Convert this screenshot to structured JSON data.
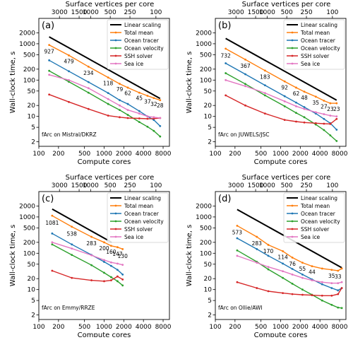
{
  "figure": {
    "legend_entries": [
      "Linear scaling",
      "Total mean",
      "Ocean tracer",
      "Ocean velocity",
      "SSH solver",
      "Sea ice"
    ]
  },
  "chart_data": [
    {
      "type": "line",
      "panel_label": "(a)",
      "note": "fArc on Mistral/DKRZ",
      "xlabel": "Compute cores",
      "ylabel": "Wall-clock time, s",
      "top_xlabel": "Surface vertices per core",
      "x_scale": "log",
      "y_scale": "log",
      "xlim": [
        100,
        10000
      ],
      "ylim": [
        1.5,
        5000
      ],
      "x_ticks": [
        100,
        200,
        500,
        1000,
        2000,
        4000,
        8000
      ],
      "x_tick_labels": [
        "100",
        "200",
        "500",
        "1000",
        "2000",
        "4000",
        "8000"
      ],
      "y_ticks": [
        2,
        5,
        10,
        20,
        50,
        100,
        200,
        500,
        1000,
        2000
      ],
      "y_tick_labels": [
        "2",
        "5",
        "10",
        "20",
        "50",
        "100",
        "200",
        "500",
        "1000",
        "2000"
      ],
      "top_ticks": [
        207,
        414,
        621,
        1241,
        2483,
        6207
      ],
      "top_tick_labels": [
        "3000",
        "1500",
        "1000",
        "500",
        "250",
        "100"
      ],
      "legend_position": "top-right",
      "series": [
        {
          "name": "Linear scaling",
          "color": "#000000",
          "marker": false,
          "x": [
            144,
            7200
          ],
          "y": [
            1550,
            31
          ]
        },
        {
          "name": "Total mean",
          "color": "#ff7f0e",
          "marker": true,
          "x": [
            144,
            288,
            576,
            1152,
            1728,
            2304,
            3456,
            4608,
            5760,
            7200
          ],
          "y": [
            927,
            479,
            234,
            118,
            79,
            62,
            45,
            37,
            32,
            28
          ]
        },
        {
          "name": "Ocean tracer",
          "color": "#1f77b4",
          "marker": true,
          "x": [
            144,
            288,
            576,
            1152,
            1728,
            2304,
            3456,
            4608,
            5760,
            7200
          ],
          "y": [
            350,
            175,
            88,
            44,
            28,
            22,
            14,
            10,
            8,
            5.4
          ]
        },
        {
          "name": "Ocean velocity",
          "color": "#2ca02c",
          "marker": true,
          "x": [
            144,
            288,
            576,
            1152,
            1728,
            2304,
            3456,
            4608,
            5760,
            7200
          ],
          "y": [
            180,
            90,
            45,
            22,
            15,
            11,
            7,
            5.2,
            4,
            2.8
          ]
        },
        {
          "name": "SSH solver",
          "color": "#d62728",
          "marker": true,
          "x": [
            144,
            288,
            576,
            1152,
            1728,
            2304,
            3456,
            4608,
            5760,
            7200
          ],
          "y": [
            40,
            25,
            16,
            10.5,
            9.5,
            9.0,
            8.8,
            8.6,
            8.7,
            9.0
          ]
        },
        {
          "name": "Sea ice",
          "color": "#e377c2",
          "marker": true,
          "x": [
            144,
            288,
            576,
            1152,
            1728,
            2304,
            3456,
            4608,
            5760,
            7200
          ],
          "y": [
            140,
            100,
            60,
            30,
            20,
            15,
            12,
            10,
            9.5,
            9.0
          ]
        }
      ],
      "data_labels": [
        927,
        479,
        234,
        118,
        79,
        62,
        45,
        37,
        32,
        28
      ],
      "data_label_x": [
        144,
        288,
        576,
        1152,
        1728,
        2304,
        3456,
        4608,
        5760,
        7200
      ],
      "data_label_y": [
        620,
        330,
        160,
        82,
        56,
        44,
        32,
        26,
        22,
        20
      ]
    },
    {
      "type": "line",
      "panel_label": "(b)",
      "note": "fArc on JUWELS/JSC",
      "xlabel": "Compute cores",
      "ylabel": "Wall-clock time, s",
      "top_xlabel": "Surface vertices per core",
      "x_scale": "log",
      "y_scale": "log",
      "xlim": [
        100,
        10000
      ],
      "ylim": [
        1.5,
        5000
      ],
      "x_ticks": [
        100,
        200,
        500,
        1000,
        2000,
        4000,
        8000
      ],
      "x_tick_labels": [
        "100",
        "200",
        "500",
        "1000",
        "2000",
        "4000",
        "8000"
      ],
      "y_ticks": [
        2,
        5,
        10,
        20,
        50,
        100,
        200,
        500,
        1000,
        2000
      ],
      "y_tick_labels": [
        "2",
        "5",
        "10",
        "20",
        "50",
        "100",
        "200",
        "500",
        "1000",
        "2000"
      ],
      "top_ticks": [
        207,
        414,
        621,
        1241,
        2483,
        6207
      ],
      "top_tick_labels": [
        "3000",
        "1500",
        "1000",
        "500",
        "250",
        "100"
      ],
      "legend_position": "top-right",
      "series": [
        {
          "name": "Linear scaling",
          "color": "#000000",
          "marker": false,
          "x": [
            144,
            7200
          ],
          "y": [
            1400,
            28
          ]
        },
        {
          "name": "Total mean",
          "color": "#ff7f0e",
          "marker": true,
          "x": [
            144,
            288,
            576,
            1152,
            1728,
            2304,
            3456,
            4608,
            5760,
            7200
          ],
          "y": [
            732,
            367,
            183,
            92,
            62,
            48,
            35,
            27,
            23,
            23
          ]
        },
        {
          "name": "Ocean tracer",
          "color": "#1f77b4",
          "marker": true,
          "x": [
            144,
            288,
            576,
            1152,
            1728,
            2304,
            3456,
            4608,
            5760,
            7200
          ],
          "y": [
            290,
            145,
            72,
            36,
            24,
            18,
            12,
            8.5,
            6.5,
            4.3
          ]
        },
        {
          "name": "Ocean velocity",
          "color": "#2ca02c",
          "marker": true,
          "x": [
            144,
            288,
            576,
            1152,
            1728,
            2304,
            3456,
            4608,
            5760,
            7200
          ],
          "y": [
            155,
            78,
            38,
            19,
            12.5,
            9.5,
            6,
            4.2,
            3,
            2.1
          ]
        },
        {
          "name": "SSH solver",
          "color": "#d62728",
          "marker": true,
          "x": [
            144,
            288,
            576,
            1152,
            1728,
            2304,
            3456,
            4608,
            5760,
            7200
          ],
          "y": [
            38,
            20,
            12,
            8,
            7.2,
            6.8,
            6.5,
            6.3,
            6.2,
            8.5
          ]
        },
        {
          "name": "Sea ice",
          "color": "#e377c2",
          "marker": true,
          "x": [
            144,
            288,
            576,
            1152,
            1728,
            2304,
            3456,
            4608,
            5760,
            7200
          ],
          "y": [
            100,
            68,
            44,
            26,
            19,
            16,
            13,
            11.5,
            10.5,
            10
          ]
        }
      ],
      "data_labels": [
        732,
        367,
        183,
        92,
        62,
        48,
        35,
        27,
        23,
        23
      ],
      "data_label_x": [
        144,
        288,
        576,
        1152,
        1728,
        2304,
        3456,
        4608,
        5760,
        7200
      ],
      "data_label_y": [
        480,
        250,
        125,
        63,
        43,
        33,
        24,
        19,
        16,
        16
      ]
    },
    {
      "type": "line",
      "panel_label": "(c)",
      "note": "fArc on Emmy/RRZE",
      "xlabel": "Compute cores",
      "ylabel": "Wall-clock time, s",
      "top_xlabel": "Surface vertices per core",
      "x_scale": "log",
      "y_scale": "log",
      "xlim": [
        100,
        10000
      ],
      "ylim": [
        1.5,
        5000
      ],
      "x_ticks": [
        100,
        200,
        500,
        1000,
        2000,
        4000,
        8000
      ],
      "x_tick_labels": [
        "100",
        "200",
        "500",
        "1000",
        "2000",
        "4000",
        "8000"
      ],
      "y_ticks": [
        2,
        5,
        10,
        20,
        50,
        100,
        200,
        500,
        1000,
        2000
      ],
      "y_tick_labels": [
        "2",
        "5",
        "10",
        "20",
        "50",
        "100",
        "200",
        "500",
        "1000",
        "2000"
      ],
      "top_ticks": [
        207,
        414,
        621,
        1241,
        2483,
        6207
      ],
      "top_tick_labels": [
        "3000",
        "1500",
        "1000",
        "500",
        "250",
        "100"
      ],
      "legend_position": "top-right",
      "series": [
        {
          "name": "Linear scaling",
          "color": "#000000",
          "marker": false,
          "x": [
            160,
            1300
          ],
          "y": [
            1650,
            200
          ]
        },
        {
          "name": "Total mean",
          "color": "#ff7f0e",
          "marker": true,
          "x": [
            160,
            320,
            640,
            1000,
            1280,
            1600,
            1920
          ],
          "y": [
            1081,
            538,
            283,
            200,
            160,
            147,
            130
          ]
        },
        {
          "name": "Ocean tracer",
          "color": "#1f77b4",
          "marker": true,
          "x": [
            160,
            320,
            640,
            1000,
            1280,
            1600,
            1920
          ],
          "y": [
            350,
            175,
            90,
            58,
            45,
            35,
            26
          ]
        },
        {
          "name": "Ocean velocity",
          "color": "#2ca02c",
          "marker": true,
          "x": [
            160,
            320,
            640,
            1000,
            1280,
            1600,
            1920
          ],
          "y": [
            175,
            90,
            47,
            29,
            22,
            17,
            13
          ]
        },
        {
          "name": "SSH solver",
          "color": "#d62728",
          "marker": true,
          "x": [
            160,
            320,
            640,
            1000,
            1280,
            1600,
            1920
          ],
          "y": [
            33,
            21,
            18,
            17,
            18,
            23,
            19
          ]
        },
        {
          "name": "Sea ice",
          "color": "#e377c2",
          "marker": true,
          "x": [
            160,
            320,
            640,
            1000,
            1280,
            1600,
            1920
          ],
          "y": [
            200,
            135,
            88,
            65,
            56,
            52,
            48
          ]
        }
      ],
      "data_labels": [
        1081,
        538,
        283,
        200,
        160,
        147,
        130
      ],
      "data_label_x": [
        160,
        320,
        640,
        1000,
        1280,
        1600,
        1920
      ],
      "data_label_y": [
        700,
        350,
        190,
        138,
        112,
        97,
        85
      ]
    },
    {
      "type": "line",
      "panel_label": "(d)",
      "note": "fArc on Ollie/AWI",
      "xlabel": "Compute cores",
      "ylabel": "Wall-clock time, s",
      "top_xlabel": "Surface vertices per core",
      "x_scale": "log",
      "y_scale": "log",
      "xlim": [
        100,
        10000
      ],
      "ylim": [
        1.5,
        5000
      ],
      "x_ticks": [
        100,
        200,
        500,
        1000,
        2000,
        4000,
        8000
      ],
      "x_tick_labels": [
        "100",
        "200",
        "500",
        "1000",
        "2000",
        "4000",
        "8000"
      ],
      "y_ticks": [
        2,
        5,
        10,
        20,
        50,
        100,
        200,
        500,
        1000,
        2000
      ],
      "y_tick_labels": [
        "2",
        "5",
        "10",
        "20",
        "50",
        "100",
        "200",
        "500",
        "1000",
        "2000"
      ],
      "top_ticks": [
        207,
        414,
        621,
        1241,
        2483,
        6207
      ],
      "top_tick_labels": [
        "3000",
        "1500",
        "1000",
        "500",
        "250",
        "100"
      ],
      "legend_position": "top-right",
      "series": [
        {
          "name": "Linear scaling",
          "color": "#000000",
          "marker": false,
          "x": [
            216,
            8640
          ],
          "y": [
            1600,
            40
          ]
        },
        {
          "name": "Total mean",
          "color": "#ff7f0e",
          "marker": true,
          "x": [
            216,
            432,
            648,
            1080,
            1512,
            2160,
            3024,
            4320,
            6048,
            7560,
            8640
          ],
          "y": [
            573,
            283,
            170,
            114,
            76,
            55,
            44,
            38,
            35,
            33,
            38
          ]
        },
        {
          "name": "Ocean tracer",
          "color": "#1f77b4",
          "marker": true,
          "x": [
            216,
            432,
            648,
            1080,
            1512,
            2160,
            3024,
            4320,
            6048,
            7560,
            8640
          ],
          "y": [
            260,
            130,
            85,
            52,
            37,
            26,
            19,
            14,
            11,
            9.5,
            11
          ]
        },
        {
          "name": "Ocean velocity",
          "color": "#2ca02c",
          "marker": true,
          "x": [
            216,
            432,
            648,
            1080,
            1512,
            2160,
            3024,
            4320,
            6048,
            7560,
            8640
          ],
          "y": [
            120,
            58,
            36,
            21,
            14.5,
            10,
            7.2,
            5,
            3.8,
            3.2,
            3.1
          ]
        },
        {
          "name": "SSH solver",
          "color": "#d62728",
          "marker": true,
          "x": [
            216,
            432,
            648,
            1080,
            1512,
            2160,
            3024,
            4320,
            6048,
            7560,
            8640
          ],
          "y": [
            16,
            11,
            9,
            8,
            7.5,
            7.2,
            7,
            6.8,
            6.8,
            7.5,
            11
          ]
        },
        {
          "name": "Sea ice",
          "color": "#e377c2",
          "marker": true,
          "x": [
            216,
            432,
            648,
            1080,
            1512,
            2160,
            3024,
            4320,
            6048,
            7560,
            8640
          ],
          "y": [
            85,
            55,
            42,
            32,
            26,
            21,
            18,
            16,
            15,
            15,
            16
          ]
        }
      ],
      "data_labels": [
        573,
        283,
        170,
        114,
        76,
        55,
        44,
        35,
        33
      ],
      "data_label_x": [
        216,
        432,
        648,
        1080,
        1512,
        2160,
        3024,
        6048,
        7560
      ],
      "data_label_y": [
        380,
        190,
        115,
        80,
        52,
        38,
        31,
        24,
        23
      ]
    }
  ]
}
